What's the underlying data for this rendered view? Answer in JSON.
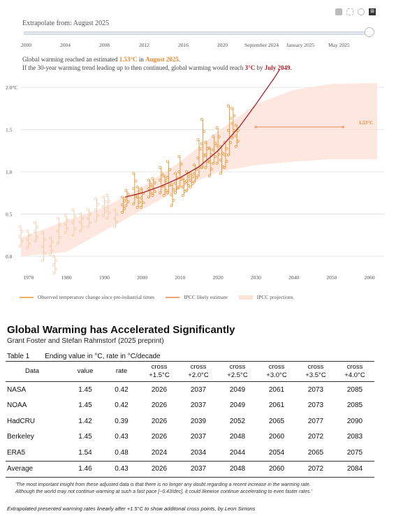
{
  "toolbar": {
    "icons": [
      "camera-icon",
      "select-icon",
      "zoom-icon",
      "logo-icon"
    ],
    "logo_text": "⊞"
  },
  "slider": {
    "label": "Extrapolate from: August 2025",
    "ticks": [
      "2000",
      "2004",
      "2008",
      "2012",
      "2016",
      "2020",
      "September 2024",
      "January 2025",
      "May 2025"
    ]
  },
  "message": {
    "l1_pre": "Global warming reached an estimated ",
    "l1_val": "1.53°C",
    "l1_mid": " in ",
    "l1_date": "August 2025",
    "l1_post": ".",
    "l2_pre": "If the 30-year warming trend leading up to then continued, global warming would reach ",
    "l2_val": "3°C",
    "l2_mid": " by ",
    "l2_date": "July 2049",
    "l2_post": "."
  },
  "chart_data": {
    "type": "scatter",
    "x_ticks": [
      1970,
      1980,
      1990,
      2000,
      2010,
      2020,
      2030,
      2040,
      2050,
      2060
    ],
    "y_ticks": [
      "0.0",
      "0.5",
      "1.0",
      "1.5",
      "2.0°C"
    ],
    "xlim": [
      1968,
      2062
    ],
    "ylim": [
      0,
      2.0
    ],
    "grid": true,
    "legend_position": "bottom",
    "series": [
      {
        "name": "Observed temperature change since pre-industrial times",
        "color": "#e8912d"
      },
      {
        "name": "IPCC likely estimate",
        "color": "#f0a17a"
      },
      {
        "name": "IPCC projections",
        "color": "#fde3d8"
      }
    ],
    "trend": {
      "color": "#a8202a",
      "points": [
        [
          1995.5,
          0.7
        ],
        [
          2000,
          0.75
        ],
        [
          2005,
          0.83
        ],
        [
          2010,
          0.93
        ],
        [
          2015,
          1.06
        ],
        [
          2020,
          1.25
        ],
        [
          2025.6,
          1.53
        ],
        [
          2030,
          1.8
        ],
        [
          2035,
          2.12
        ],
        [
          2040,
          2.48
        ],
        [
          2045,
          2.8
        ],
        [
          2049.5,
          3.0
        ]
      ]
    },
    "ipcc_band": {
      "upper": [
        [
          1968,
          0.22
        ],
        [
          1980,
          0.42
        ],
        [
          1990,
          0.58
        ],
        [
          2000,
          0.82
        ],
        [
          2010,
          1.12
        ],
        [
          2020,
          1.48
        ],
        [
          2030,
          1.8
        ],
        [
          2040,
          1.97
        ],
        [
          2050,
          2.04
        ],
        [
          2062,
          2.05
        ]
      ],
      "lower": [
        [
          1968,
          0.0
        ],
        [
          1980,
          0.05
        ],
        [
          1990,
          0.3
        ],
        [
          2000,
          0.55
        ],
        [
          2010,
          0.8
        ],
        [
          2020,
          1.0
        ],
        [
          2030,
          1.08
        ],
        [
          2040,
          1.12
        ],
        [
          2050,
          1.15
        ],
        [
          2062,
          1.15
        ]
      ]
    },
    "ipcc_estimate": {
      "value": 1.53,
      "x_from": 2030,
      "x_to": 2053,
      "label": "1.53°C"
    },
    "observed_ranges": [
      [
        1968,
        0.12,
        0.35
      ],
      [
        1970,
        0.1,
        0.3
      ],
      [
        1972,
        0.18,
        0.4
      ],
      [
        1974,
        -0.05,
        0.28
      ],
      [
        1976,
        0.02,
        0.22
      ],
      [
        1977,
        0.0,
        -0.2
      ],
      [
        1978,
        0.15,
        0.45
      ],
      [
        1980,
        0.28,
        0.48
      ],
      [
        1982,
        0.25,
        0.55
      ],
      [
        1984,
        0.3,
        0.5
      ],
      [
        1986,
        0.35,
        0.55
      ],
      [
        1988,
        0.42,
        0.68
      ],
      [
        1990,
        0.48,
        0.7
      ],
      [
        1991,
        0.45,
        0.72
      ],
      [
        1993,
        0.35,
        0.55
      ],
      [
        1995,
        0.52,
        0.7
      ],
      [
        1996,
        0.6,
        0.78
      ],
      [
        1998,
        0.62,
        0.98
      ],
      [
        1999,
        0.58,
        0.82
      ],
      [
        2000,
        0.58,
        0.8
      ],
      [
        2002,
        0.7,
        0.9
      ],
      [
        2003,
        0.72,
        0.92
      ],
      [
        2005,
        0.75,
        1.05
      ],
      [
        2006,
        0.72,
        0.95
      ],
      [
        2007,
        0.75,
        1.12
      ],
      [
        2008,
        0.6,
        0.85
      ],
      [
        2009,
        0.75,
        0.98
      ],
      [
        2010,
        0.82,
        1.18
      ],
      [
        2011,
        0.72,
        0.92
      ],
      [
        2012,
        0.78,
        1.0
      ],
      [
        2013,
        0.82,
        0.98
      ],
      [
        2014,
        0.88,
        1.08
      ],
      [
        2015,
        0.95,
        1.38
      ],
      [
        2016,
        1.05,
        1.62
      ],
      [
        2017,
        1.05,
        1.35
      ],
      [
        2018,
        0.95,
        1.28
      ],
      [
        2019,
        1.1,
        1.42
      ],
      [
        2020,
        1.1,
        1.52
      ],
      [
        2021,
        0.98,
        1.3
      ],
      [
        2022,
        1.05,
        1.35
      ],
      [
        2023,
        1.2,
        1.78
      ],
      [
        2024,
        1.4,
        1.75
      ],
      [
        2025,
        1.3,
        1.55
      ]
    ]
  },
  "legend": {
    "observed": "Observed temperature change since pre-industrial times",
    "likely": "IPCC likely estimate",
    "projections": "IPCC projections"
  },
  "table": {
    "title": "Global Warming has Accelerated Significantly",
    "subtitle": "Grant Foster and Stefan Rahmstorf (2025 preprint)",
    "caption_num": "Table 1",
    "caption": "Ending value in °C, rate in °C/decade",
    "headers": {
      "data": "Data",
      "value": "value",
      "rate": "rate",
      "c15a": "cross",
      "c15b": "+1.5°C",
      "c20a": "cross",
      "c20b": "+2.0°C",
      "c25a": "cross",
      "c25b": "+2.5°C",
      "c30a": "cross",
      "c30b": "+3.0°C",
      "c35a": "cross",
      "c35b": "+3.5°C",
      "c40a": "cross",
      "c40b": "+4.0°C"
    },
    "rows": [
      [
        "NASA",
        "1.45",
        "0.42",
        "2026",
        "2037",
        "2049",
        "2061",
        "2073",
        "2085"
      ],
      [
        "NOAA",
        "1.45",
        "0.42",
        "2026",
        "2037",
        "2049",
        "2061",
        "2073",
        "2085"
      ],
      [
        "HadCRU",
        "1.42",
        "0.39",
        "2026",
        "2039",
        "2052",
        "2065",
        "2077",
        "2090"
      ],
      [
        "Berkeley",
        "1.45",
        "0.43",
        "2026",
        "2037",
        "2048",
        "2060",
        "2072",
        "2083"
      ],
      [
        "ERA5",
        "1.54",
        "0.48",
        "2024",
        "2034",
        "2044",
        "2054",
        "2065",
        "2075"
      ],
      [
        "Average",
        "1.46",
        "0.43",
        "2026",
        "2037",
        "2048",
        "2060",
        "2072",
        "2084"
      ]
    ],
    "note_l1": "'The most important insight from these adjusted data is that there is no longer any doubt regarding a recent increase in the warming rate.",
    "note_l2": "Although the world may not continue warming at such a fast pace [~0.43/dec], it could likewise continue accelerating to even faster rates.'",
    "credit": "Extrapolated presented warming rates linearly after +1.5°C to show additonal cross points, by Leon Simons"
  }
}
